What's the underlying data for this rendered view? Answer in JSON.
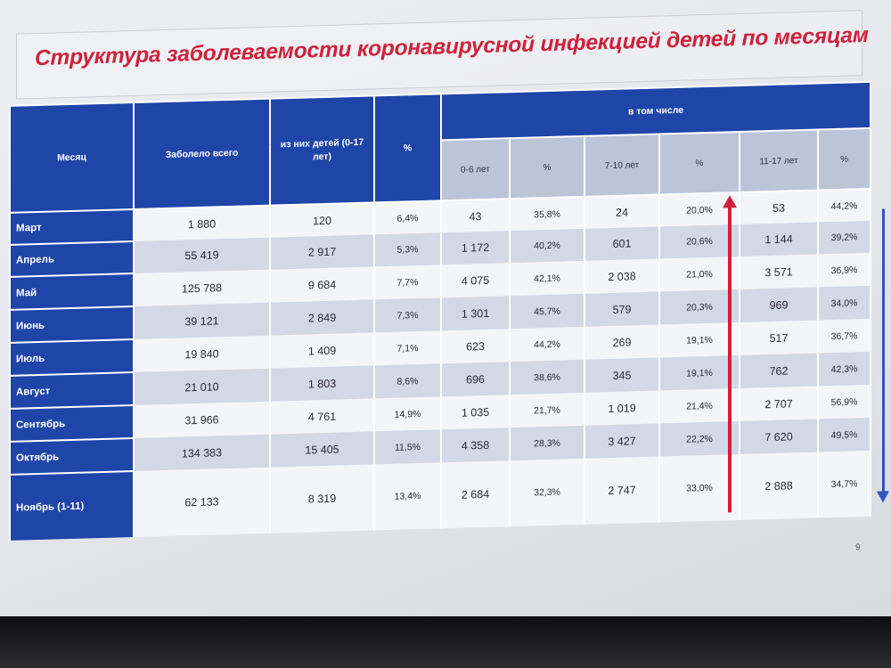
{
  "slide": {
    "title": "Структура заболеваемости коронавирусной инфекцией детей по месяцам",
    "page_number": "9"
  },
  "table": {
    "headers": {
      "month": "Месяц",
      "total": "Заболело всего",
      "children": "из них детей (0-17 лет)",
      "pct": "%",
      "group": "в том числе",
      "age_0_6": "0-6 лет",
      "pct_0_6": "%",
      "age_7_10": "7-10 лет",
      "pct_7_10": "%",
      "age_11_17": "11-17 лет",
      "pct_11_17": "%"
    },
    "rows": [
      {
        "month": "Март",
        "total": "1 880",
        "children": "120",
        "pct": "6,4%",
        "a0_6": "43",
        "p0_6": "35,8%",
        "a7_10": "24",
        "p7_10": "20,0%",
        "a11_17": "53",
        "p11_17": "44,2%"
      },
      {
        "month": "Апрель",
        "total": "55 419",
        "children": "2 917",
        "pct": "5,3%",
        "a0_6": "1 172",
        "p0_6": "40,2%",
        "a7_10": "601",
        "p7_10": "20,6%",
        "a11_17": "1 144",
        "p11_17": "39,2%"
      },
      {
        "month": "Май",
        "total": "125 788",
        "children": "9 684",
        "pct": "7,7%",
        "a0_6": "4 075",
        "p0_6": "42,1%",
        "a7_10": "2 038",
        "p7_10": "21,0%",
        "a11_17": "3 571",
        "p11_17": "36,9%"
      },
      {
        "month": "Июнь",
        "total": "39 121",
        "children": "2 849",
        "pct": "7,3%",
        "a0_6": "1 301",
        "p0_6": "45,7%",
        "a7_10": "579",
        "p7_10": "20,3%",
        "a11_17": "969",
        "p11_17": "34,0%"
      },
      {
        "month": "Июль",
        "total": "19 840",
        "children": "1 409",
        "pct": "7,1%",
        "a0_6": "623",
        "p0_6": "44,2%",
        "a7_10": "269",
        "p7_10": "19,1%",
        "a11_17": "517",
        "p11_17": "36,7%"
      },
      {
        "month": "Август",
        "total": "21 010",
        "children": "1 803",
        "pct": "8,6%",
        "a0_6": "696",
        "p0_6": "38,6%",
        "a7_10": "345",
        "p7_10": "19,1%",
        "a11_17": "762",
        "p11_17": "42,3%"
      },
      {
        "month": "Сентябрь",
        "total": "31 966",
        "children": "4 761",
        "pct": "14,9%",
        "a0_6": "1 035",
        "p0_6": "21,7%",
        "a7_10": "1 019",
        "p7_10": "21,4%",
        "a11_17": "2 707",
        "p11_17": "56,9%"
      },
      {
        "month": "Октябрь",
        "total": "134 383",
        "children": "15 405",
        "pct": "11,5%",
        "a0_6": "4 358",
        "p0_6": "28,3%",
        "a7_10": "3 427",
        "p7_10": "22,2%",
        "a11_17": "7 620",
        "p11_17": "49,5%"
      },
      {
        "month": "Ноябрь (1-11)",
        "total": "62 133",
        "children": "8 319",
        "pct": "13,4%",
        "a0_6": "2 684",
        "p0_6": "32,3%",
        "a7_10": "2 747",
        "p7_10": "33,0%",
        "a11_17": "2 888",
        "p11_17": "34,7%"
      }
    ]
  },
  "colors": {
    "header_blue": "#1f45a8",
    "title_red": "#d0213b",
    "arrow_red": "#d0213b",
    "arrow_blue": "#2f55c0",
    "row_light": "#f4f5f8",
    "row_dark": "#d3d8e6"
  },
  "icons": [
    "arrow-up-red-icon",
    "arrow-down-blue-icon"
  ]
}
